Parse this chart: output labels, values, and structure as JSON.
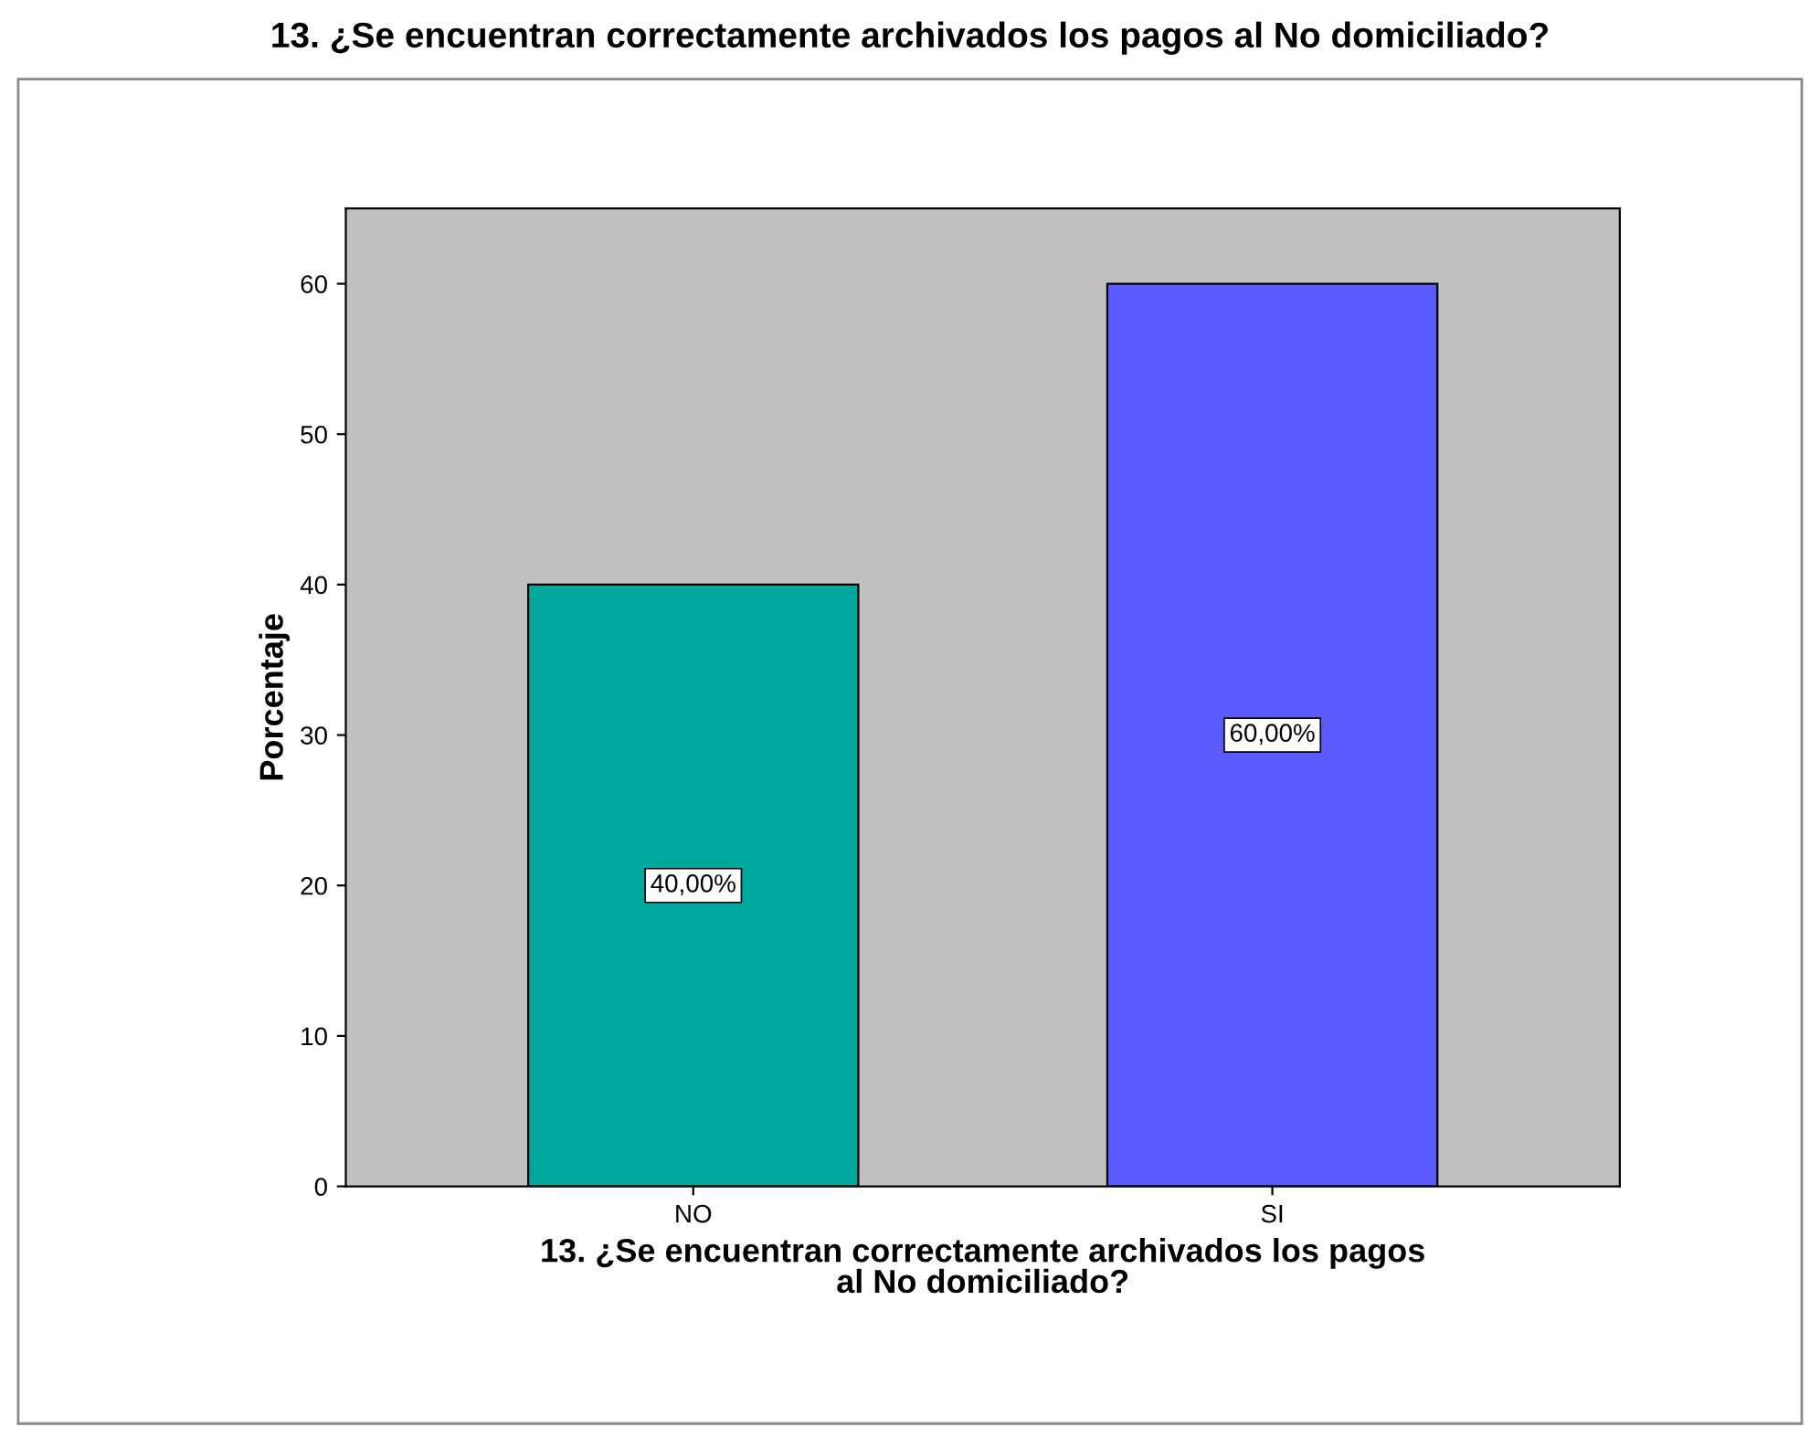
{
  "chart_data": {
    "type": "bar",
    "title": "13. ¿Se encuentran correctamente archivados los pagos al No domiciliado?",
    "xlabel": "13. ¿Se encuentran correctamente archivados los pagos\nal No domiciliado?",
    "ylabel": "Porcentaje",
    "categories": [
      "NO",
      "SI"
    ],
    "values": [
      40,
      60
    ],
    "colors": [
      "#00a79d",
      "#5a5aff"
    ],
    "value_labels": [
      "40,00%",
      "60,00%"
    ],
    "ylim": [
      0,
      65
    ],
    "yticks": [
      0,
      10,
      20,
      30,
      40,
      50,
      60
    ],
    "grid": false,
    "legend": false
  }
}
